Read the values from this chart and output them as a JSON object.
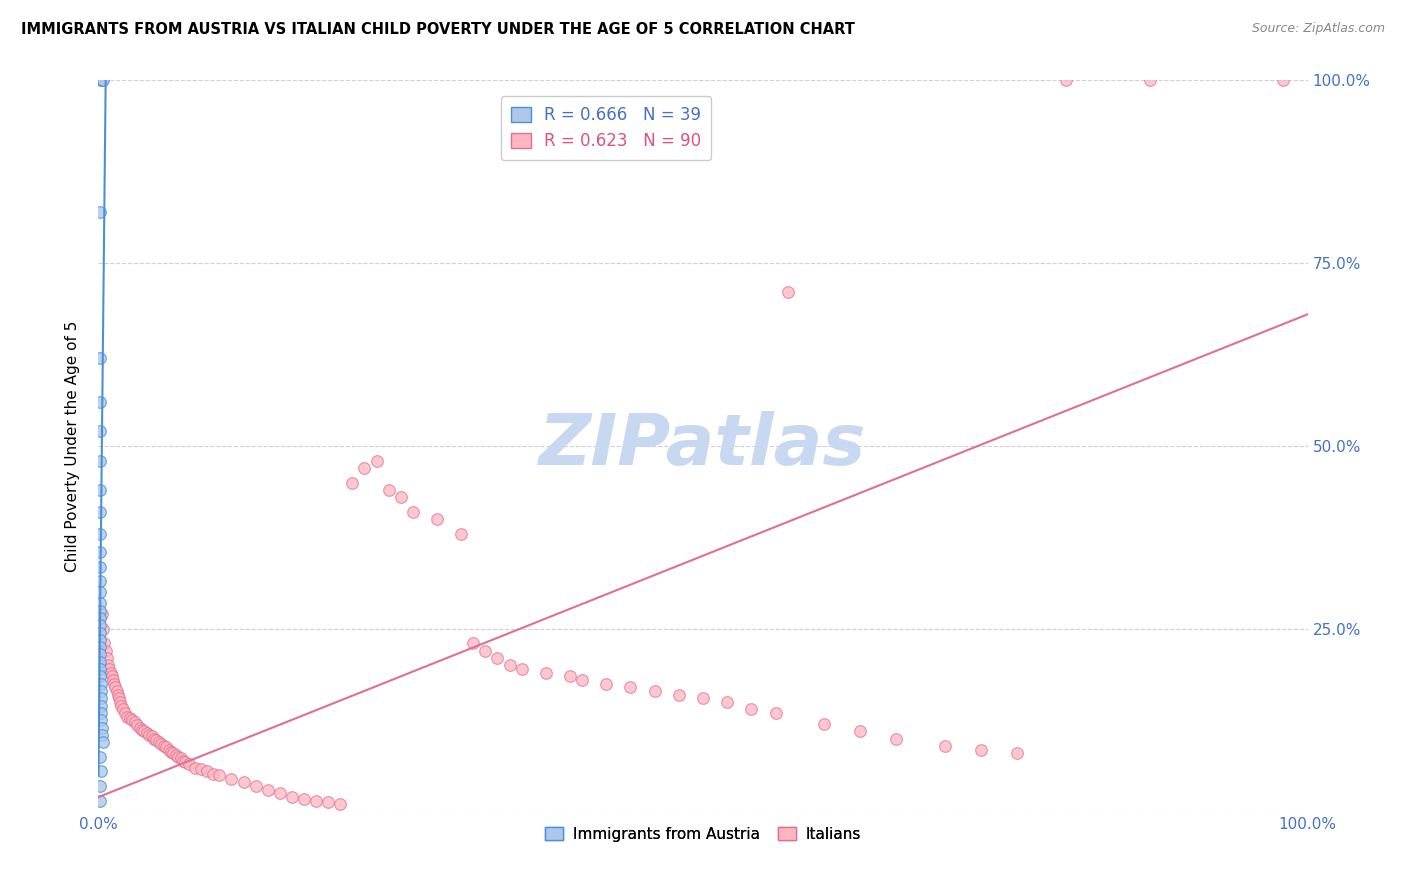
{
  "title": "IMMIGRANTS FROM AUSTRIA VS ITALIAN CHILD POVERTY UNDER THE AGE OF 5 CORRELATION CHART",
  "source": "Source: ZipAtlas.com",
  "ylabel": "Child Poverty Under the Age of 5",
  "blue_color": "#aec7e8",
  "pink_color": "#ffb6c1",
  "blue_edge_color": "#4a90d9",
  "pink_edge_color": "#e07090",
  "blue_line_color": "#4a90d9",
  "pink_line_color": "#e07090",
  "blue_label_color": "#4472C4",
  "pink_label_color": "#e05080",
  "axis_label_color": "#4472C4",
  "watermark_color": "#c8d8f0",
  "austria_scatter": [
    [
      0.002,
      1.0
    ],
    [
      0.003,
      1.0
    ],
    [
      0.004,
      1.0
    ],
    [
      0.001,
      0.82
    ],
    [
      0.001,
      0.62
    ],
    [
      0.001,
      0.56
    ],
    [
      0.001,
      0.52
    ],
    [
      0.001,
      0.48
    ],
    [
      0.001,
      0.44
    ],
    [
      0.001,
      0.41
    ],
    [
      0.001,
      0.38
    ],
    [
      0.001,
      0.355
    ],
    [
      0.001,
      0.335
    ],
    [
      0.001,
      0.315
    ],
    [
      0.001,
      0.3
    ],
    [
      0.001,
      0.285
    ],
    [
      0.001,
      0.275
    ],
    [
      0.001,
      0.265
    ],
    [
      0.001,
      0.255
    ],
    [
      0.001,
      0.245
    ],
    [
      0.001,
      0.235
    ],
    [
      0.001,
      0.225
    ],
    [
      0.001,
      0.215
    ],
    [
      0.001,
      0.205
    ],
    [
      0.001,
      0.195
    ],
    [
      0.001,
      0.185
    ],
    [
      0.002,
      0.175
    ],
    [
      0.002,
      0.165
    ],
    [
      0.002,
      0.155
    ],
    [
      0.002,
      0.145
    ],
    [
      0.002,
      0.135
    ],
    [
      0.002,
      0.125
    ],
    [
      0.003,
      0.115
    ],
    [
      0.003,
      0.105
    ],
    [
      0.004,
      0.095
    ],
    [
      0.001,
      0.075
    ],
    [
      0.002,
      0.055
    ],
    [
      0.001,
      0.035
    ],
    [
      0.001,
      0.015
    ]
  ],
  "italian_scatter": [
    [
      0.003,
      0.27
    ],
    [
      0.004,
      0.25
    ],
    [
      0.005,
      0.23
    ],
    [
      0.006,
      0.22
    ],
    [
      0.007,
      0.21
    ],
    [
      0.008,
      0.2
    ],
    [
      0.009,
      0.195
    ],
    [
      0.01,
      0.19
    ],
    [
      0.011,
      0.185
    ],
    [
      0.012,
      0.18
    ],
    [
      0.013,
      0.175
    ],
    [
      0.014,
      0.17
    ],
    [
      0.015,
      0.165
    ],
    [
      0.016,
      0.16
    ],
    [
      0.017,
      0.155
    ],
    [
      0.018,
      0.15
    ],
    [
      0.019,
      0.145
    ],
    [
      0.02,
      0.14
    ],
    [
      0.022,
      0.135
    ],
    [
      0.024,
      0.13
    ],
    [
      0.026,
      0.128
    ],
    [
      0.028,
      0.125
    ],
    [
      0.03,
      0.122
    ],
    [
      0.032,
      0.118
    ],
    [
      0.034,
      0.115
    ],
    [
      0.036,
      0.112
    ],
    [
      0.038,
      0.11
    ],
    [
      0.04,
      0.108
    ],
    [
      0.042,
      0.105
    ],
    [
      0.044,
      0.103
    ],
    [
      0.046,
      0.1
    ],
    [
      0.048,
      0.098
    ],
    [
      0.05,
      0.095
    ],
    [
      0.052,
      0.092
    ],
    [
      0.054,
      0.09
    ],
    [
      0.056,
      0.088
    ],
    [
      0.058,
      0.085
    ],
    [
      0.06,
      0.082
    ],
    [
      0.062,
      0.08
    ],
    [
      0.064,
      0.078
    ],
    [
      0.066,
      0.075
    ],
    [
      0.068,
      0.073
    ],
    [
      0.07,
      0.07
    ],
    [
      0.072,
      0.068
    ],
    [
      0.075,
      0.065
    ],
    [
      0.08,
      0.06
    ],
    [
      0.085,
      0.058
    ],
    [
      0.09,
      0.055
    ],
    [
      0.095,
      0.052
    ],
    [
      0.1,
      0.05
    ],
    [
      0.11,
      0.045
    ],
    [
      0.12,
      0.04
    ],
    [
      0.13,
      0.035
    ],
    [
      0.14,
      0.03
    ],
    [
      0.15,
      0.025
    ],
    [
      0.16,
      0.02
    ],
    [
      0.17,
      0.018
    ],
    [
      0.18,
      0.015
    ],
    [
      0.19,
      0.013
    ],
    [
      0.2,
      0.01
    ],
    [
      0.21,
      0.45
    ],
    [
      0.22,
      0.47
    ],
    [
      0.23,
      0.48
    ],
    [
      0.24,
      0.44
    ],
    [
      0.25,
      0.43
    ],
    [
      0.26,
      0.41
    ],
    [
      0.28,
      0.4
    ],
    [
      0.3,
      0.38
    ],
    [
      0.31,
      0.23
    ],
    [
      0.32,
      0.22
    ],
    [
      0.33,
      0.21
    ],
    [
      0.34,
      0.2
    ],
    [
      0.35,
      0.195
    ],
    [
      0.37,
      0.19
    ],
    [
      0.39,
      0.185
    ],
    [
      0.4,
      0.18
    ],
    [
      0.42,
      0.175
    ],
    [
      0.44,
      0.17
    ],
    [
      0.46,
      0.165
    ],
    [
      0.48,
      0.16
    ],
    [
      0.5,
      0.155
    ],
    [
      0.52,
      0.15
    ],
    [
      0.54,
      0.14
    ],
    [
      0.56,
      0.135
    ],
    [
      0.57,
      0.71
    ],
    [
      0.8,
      1.0
    ],
    [
      0.87,
      1.0
    ],
    [
      0.98,
      1.0
    ],
    [
      0.6,
      0.12
    ],
    [
      0.63,
      0.11
    ],
    [
      0.66,
      0.1
    ],
    [
      0.7,
      0.09
    ],
    [
      0.73,
      0.085
    ],
    [
      0.76,
      0.08
    ]
  ],
  "austria_line_x": [
    0.0,
    0.006
  ],
  "austria_line_y": [
    0.05,
    1.0
  ],
  "italian_line_x": [
    0.0,
    1.0
  ],
  "italian_line_y": [
    0.02,
    0.68
  ],
  "xlim": [
    0.0,
    1.0
  ],
  "ylim": [
    0.0,
    1.0
  ],
  "yticks": [
    0.0,
    0.25,
    0.5,
    0.75,
    1.0
  ],
  "ytick_labels": [
    "",
    "25.0%",
    "50.0%",
    "75.0%",
    "100.0%"
  ],
  "xtick_left_label": "0.0%",
  "xtick_right_label": "100.0%"
}
